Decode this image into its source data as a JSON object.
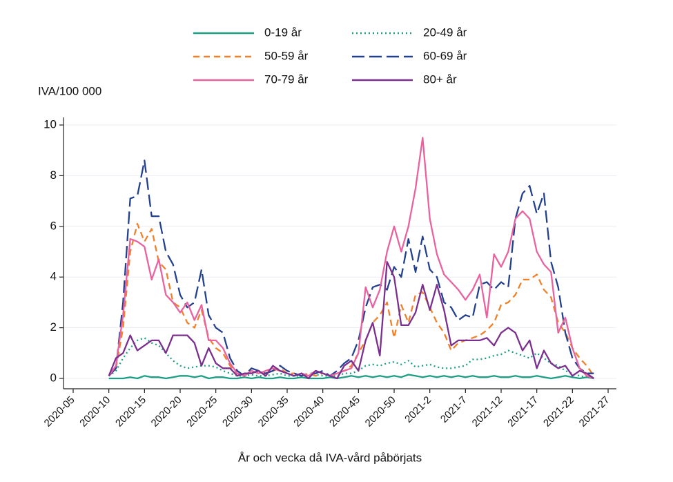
{
  "chart_data": {
    "type": "line",
    "y_label": "IVA/100 000",
    "x_label": "År och vecka då IVA-vård påbörjats",
    "categories": [
      "2020-05",
      null,
      null,
      null,
      null,
      "2020-10",
      null,
      null,
      null,
      null,
      "2020-15",
      null,
      null,
      null,
      null,
      "2020-20",
      null,
      null,
      null,
      null,
      "2020-25",
      null,
      null,
      null,
      null,
      "2020-30",
      null,
      null,
      null,
      null,
      "2020-35",
      null,
      null,
      null,
      null,
      "2020-40",
      null,
      null,
      null,
      null,
      "2020-45",
      null,
      null,
      null,
      null,
      "2020-50",
      null,
      null,
      null,
      null,
      "2021-2",
      null,
      null,
      null,
      null,
      "2021-7",
      null,
      null,
      null,
      null,
      "2021-12",
      null,
      null,
      null,
      null,
      "2021-17",
      null,
      null,
      null,
      null,
      "2021-22",
      null,
      null,
      null,
      null,
      "2021-27"
    ],
    "ylim": [
      0,
      10
    ],
    "yticks": [
      0,
      2,
      4,
      6,
      8,
      10
    ],
    "grid": true,
    "series": [
      {
        "name": "0-19 år",
        "color": "#1b9e82",
        "dash": "solid",
        "values": [
          null,
          null,
          null,
          null,
          null,
          0,
          0,
          0,
          0.05,
          0,
          0.1,
          0.05,
          0.05,
          0,
          0.05,
          0.1,
          0.1,
          0.05,
          0.1,
          0,
          0.05,
          0.05,
          0,
          0,
          0.05,
          0,
          0.05,
          0,
          0,
          0.05,
          0,
          0,
          0.05,
          0,
          0,
          0,
          0.05,
          0,
          0.05,
          0.1,
          0.05,
          0.1,
          0.05,
          0.1,
          0.05,
          0.1,
          0.05,
          0.15,
          0.1,
          0.05,
          0.1,
          0.05,
          0.1,
          0.05,
          0.1,
          0.05,
          0.1,
          0.05,
          0.05,
          0.1,
          0.05,
          0.05,
          0.1,
          0.05,
          0.05,
          0.1,
          0.05,
          0,
          0.05,
          0.1,
          0.05,
          0,
          0.05,
          0,
          null,
          null
        ]
      },
      {
        "name": "20-49 år",
        "color": "#1b9e82",
        "dash": "dotted",
        "values": [
          null,
          null,
          null,
          null,
          null,
          0.1,
          0.3,
          0.8,
          1.2,
          1.5,
          1.6,
          1.4,
          1.3,
          1.0,
          0.7,
          0.5,
          0.4,
          0.45,
          0.5,
          0.5,
          0.45,
          0.3,
          0.2,
          0.1,
          0.1,
          0.15,
          0.1,
          0.1,
          0.15,
          0.2,
          0.1,
          0.1,
          0.1,
          0.1,
          0.15,
          0.1,
          0.1,
          0.1,
          0.2,
          0.2,
          0.3,
          0.5,
          0.55,
          0.5,
          0.6,
          0.65,
          0.55,
          0.7,
          0.45,
          0.5,
          0.55,
          0.45,
          0.4,
          0.4,
          0.45,
          0.5,
          0.75,
          0.75,
          0.8,
          0.9,
          0.95,
          1.1,
          1.0,
          0.9,
          0.8,
          1.0,
          0.8,
          0.6,
          0.5,
          0.3,
          0.2,
          0.1,
          0.05,
          0.05,
          null,
          null
        ]
      },
      {
        "name": "50-59 år",
        "color": "#f0802a",
        "dash": "dashed",
        "values": [
          null,
          null,
          null,
          null,
          null,
          0.1,
          0.4,
          2.0,
          5.0,
          6.1,
          5.4,
          5.9,
          4.6,
          4.3,
          3.0,
          2.8,
          2.2,
          2.0,
          2.7,
          1.6,
          1.2,
          1.0,
          0.5,
          0.2,
          0.1,
          0.3,
          0.2,
          0.2,
          0.3,
          0.4,
          0.2,
          0.2,
          0.1,
          0.2,
          0.1,
          0.2,
          0.1,
          0.2,
          0.3,
          0.5,
          1.0,
          1.5,
          2.2,
          2.5,
          3.0,
          1.6,
          2.9,
          2.2,
          3.3,
          3.4,
          2.8,
          2.2,
          1.8,
          1.1,
          1.4,
          1.5,
          1.6,
          1.7,
          1.9,
          2.2,
          2.9,
          3.0,
          3.3,
          3.9,
          3.9,
          4.1,
          3.5,
          3.2,
          2.2,
          1.8,
          1.2,
          0.8,
          0.5,
          0.1,
          null,
          null
        ]
      },
      {
        "name": "60-69 år",
        "color": "#23408e",
        "dash": "longdash",
        "values": [
          null,
          null,
          null,
          null,
          null,
          0.1,
          0.4,
          3.0,
          7.1,
          7.2,
          8.6,
          6.4,
          6.4,
          5.0,
          4.5,
          3.3,
          2.8,
          3.0,
          4.3,
          2.5,
          2.0,
          1.8,
          0.8,
          0.3,
          0.1,
          0.4,
          0.3,
          0.2,
          0.3,
          0.5,
          0.3,
          0.2,
          0.1,
          0.2,
          0.2,
          0.3,
          0.1,
          0.3,
          0.6,
          0.8,
          1.5,
          2.8,
          3.6,
          3.7,
          3.5,
          4.4,
          4.0,
          5.5,
          4.2,
          5.6,
          4.3,
          4.0,
          3.0,
          2.8,
          2.3,
          2.5,
          2.4,
          3.7,
          3.8,
          3.5,
          3.8,
          3.6,
          6.3,
          7.3,
          7.6,
          6.5,
          7.3,
          4.6,
          3.6,
          1.8,
          0.8,
          0.4,
          0.2,
          0.2,
          null,
          null
        ]
      },
      {
        "name": "70-79 år",
        "color": "#e9629e",
        "dash": "solid",
        "values": [
          null,
          null,
          null,
          null,
          null,
          0.1,
          0.5,
          2.5,
          5.5,
          5.4,
          5.2,
          3.9,
          4.7,
          3.3,
          3.0,
          2.6,
          3.0,
          2.3,
          2.9,
          1.5,
          1.5,
          1.2,
          0.6,
          0.2,
          0.1,
          0.3,
          0.2,
          0.3,
          0.4,
          0.3,
          0.2,
          0.1,
          0.2,
          0.1,
          0.3,
          0.2,
          0.1,
          0.2,
          0.3,
          0.4,
          1.0,
          3.6,
          2.8,
          3.5,
          5.0,
          6.0,
          5.0,
          6.0,
          7.5,
          9.5,
          6.3,
          4.9,
          4.1,
          3.8,
          3.5,
          3.1,
          3.5,
          4.1,
          2.4,
          4.9,
          4.4,
          5.0,
          6.3,
          6.6,
          6.3,
          5.0,
          4.5,
          4.2,
          1.8,
          2.4,
          1.2,
          0.4,
          0.1,
          0.0,
          null,
          null
        ]
      },
      {
        "name": "80+ år",
        "color": "#7a2f8e",
        "dash": "solid",
        "values": [
          null,
          null,
          null,
          null,
          null,
          0.1,
          0.8,
          1.0,
          1.7,
          1.1,
          1.3,
          1.5,
          1.5,
          1.0,
          1.7,
          1.7,
          1.7,
          1.4,
          0.5,
          1.2,
          0.6,
          0.4,
          0.4,
          0.1,
          0.2,
          0.2,
          0.3,
          0.1,
          0.5,
          0.3,
          0.2,
          0.1,
          0.2,
          0.0,
          0.3,
          0.2,
          0.1,
          0.0,
          0.5,
          0.7,
          0.3,
          1.5,
          2.2,
          0.9,
          4.6,
          4.0,
          2.1,
          2.1,
          2.6,
          3.7,
          2.7,
          3.7,
          2.7,
          1.3,
          1.5,
          1.5,
          1.5,
          1.5,
          1.6,
          1.3,
          1.8,
          2.0,
          1.8,
          1.1,
          1.5,
          0.4,
          1.1,
          0.6,
          0.4,
          0.5,
          0.1,
          0.3,
          0.2,
          0.0,
          null,
          null
        ]
      }
    ]
  }
}
